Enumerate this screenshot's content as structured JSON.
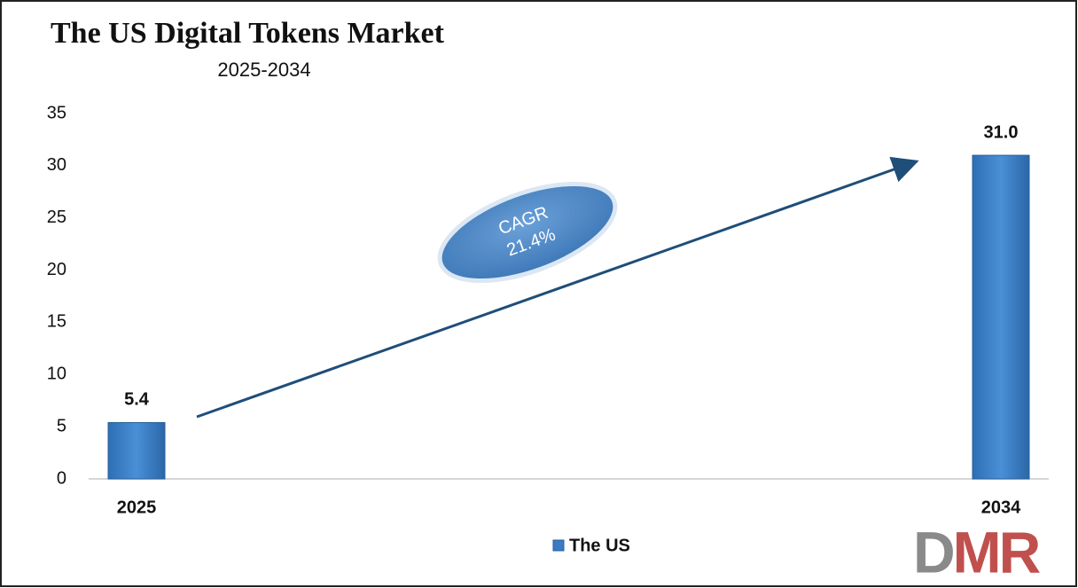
{
  "chart_data": {
    "type": "bar",
    "title": "The US Digital Tokens Market",
    "subtitle": "2025-2034",
    "categories": [
      "2025",
      "2034"
    ],
    "series": [
      {
        "name": "The US",
        "color": "#3a7cc3",
        "values": [
          5.4,
          31.0
        ],
        "value_labels": [
          "5.4",
          "31.0"
        ]
      }
    ],
    "ylim": [
      0,
      35
    ],
    "yticks": [
      0,
      5,
      10,
      15,
      20,
      25,
      30,
      35
    ],
    "grid": false,
    "legend": "bottom",
    "annotations": [
      "CAGR",
      "21.4%"
    ]
  },
  "logo": "DMR"
}
